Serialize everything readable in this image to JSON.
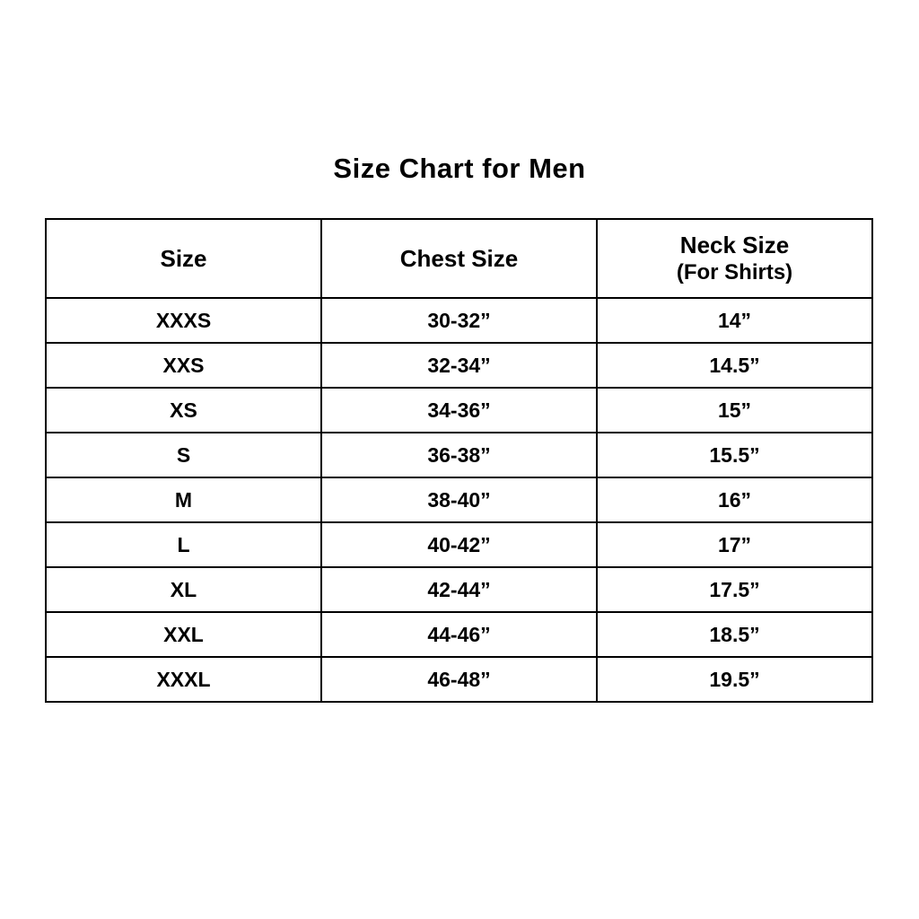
{
  "page": {
    "title": "Size Chart for Men"
  },
  "colors": {
    "background": "#ffffff",
    "border": "#000000",
    "text": "#000000"
  },
  "table": {
    "header": {
      "size": "Size",
      "chest": "Chest Size",
      "neck": "Neck Size",
      "neck_sub": "(For Shirts)"
    },
    "rows": [
      {
        "size": "XXXS",
        "chest": "30-32”",
        "neck": "14”"
      },
      {
        "size": "XXS",
        "chest": "32-34”",
        "neck": "14.5”"
      },
      {
        "size": "XS",
        "chest": "34-36”",
        "neck": "15”"
      },
      {
        "size": "S",
        "chest": "36-38”",
        "neck": "15.5”"
      },
      {
        "size": "M",
        "chest": "38-40”",
        "neck": "16”"
      },
      {
        "size": "L",
        "chest": "40-42”",
        "neck": "17”"
      },
      {
        "size": "XL",
        "chest": "42-44”",
        "neck": "17.5”"
      },
      {
        "size": "XXL",
        "chest": "44-46”",
        "neck": "18.5”"
      },
      {
        "size": "XXXL",
        "chest": "46-48”",
        "neck": "19.5”"
      }
    ]
  },
  "chart_data": {
    "type": "table",
    "title": "Size Chart for Men",
    "columns": [
      "Size",
      "Chest Size",
      "Neck Size (For Shirts)"
    ],
    "rows": [
      [
        "XXXS",
        "30-32”",
        "14”"
      ],
      [
        "XXS",
        "32-34”",
        "14.5”"
      ],
      [
        "XS",
        "34-36”",
        "15”"
      ],
      [
        "S",
        "36-38”",
        "15.5”"
      ],
      [
        "M",
        "38-40”",
        "16”"
      ],
      [
        "L",
        "40-42”",
        "17”"
      ],
      [
        "XL",
        "42-44”",
        "17.5”"
      ],
      [
        "XXL",
        "44-46”",
        "18.5”"
      ],
      [
        "XXXL",
        "46-48”",
        "19.5”"
      ]
    ],
    "layout": {
      "grid": true,
      "legend": "none",
      "text_style": "bold",
      "alignment": "center"
    }
  }
}
